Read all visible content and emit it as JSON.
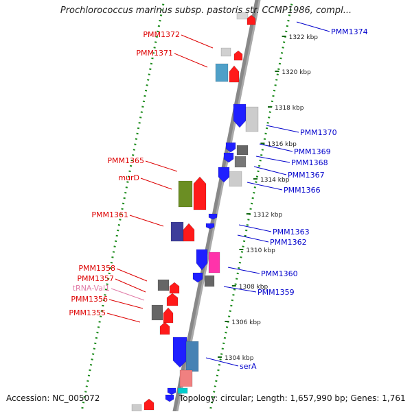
{
  "title": "Prochlorococcus marinus subsp. pastoris str. CCMP1986, compl...",
  "footer": {
    "accession": "Accession: NC_005072",
    "topology": "Topology: circular; Length: 1,657,990 bp; Genes: 1,761"
  },
  "colors": {
    "forward_label": "#dd0000",
    "reverse_label": "#0000cc",
    "trna_label": "#e07aa6",
    "tick": "#1a8a1a",
    "backbone": "#888888"
  },
  "kbp_ticks": [
    "1322 kbp",
    "1320 kbp",
    "1318 kbp",
    "1316 kbp",
    "1314 kbp",
    "1312 kbp",
    "1310 kbp",
    "1308 kbp",
    "1306 kbp",
    "1304 kbp"
  ],
  "left_labels": [
    "PMM1372",
    "PMM1371",
    "PMM1365",
    "murD",
    "PMM1361",
    "PMM1358",
    "PMM1357",
    "tRNA-Val1",
    "PMM1356",
    "PMM1355"
  ],
  "right_labels": [
    "PMM1374",
    "PMM1370",
    "PMM1369",
    "PMM1368",
    "PMM1367",
    "PMM1366",
    "PMM1363",
    "PMM1362",
    "PMM1360",
    "PMM1359",
    "serA"
  ]
}
